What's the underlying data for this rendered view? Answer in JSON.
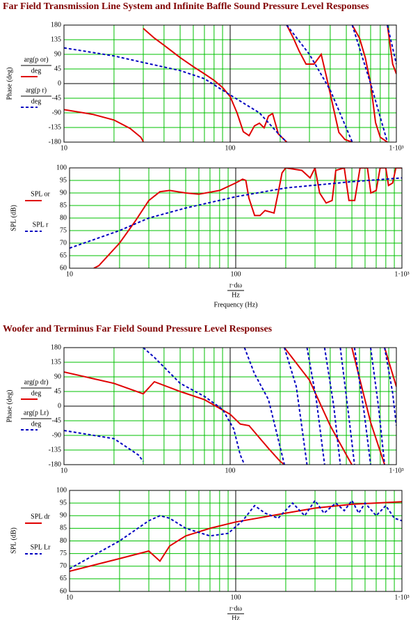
{
  "chart_data": [
    {
      "type": "line",
      "title": "Far Field Transmission Line System and Infinite Baffle Sound Pressure Level Responses",
      "ylabel": "Phase (deg)",
      "legend_denominator": "deg",
      "xlog": true,
      "xlim": [
        10,
        1000
      ],
      "xticks": [
        10,
        100,
        {
          "value": 1000,
          "label": "1·10³"
        }
      ],
      "ylim": [
        -180,
        180
      ],
      "yticks": [
        -180,
        -135,
        -90,
        -45,
        0,
        45,
        90,
        135,
        180
      ],
      "grid": true,
      "series": [
        {
          "name": "arg(p or)",
          "color": "#e00000",
          "dash": false,
          "x": [
            10,
            15,
            20,
            25,
            29,
            30,
            30,
            30,
            35,
            40,
            50,
            60,
            70,
            80,
            90,
            100,
            110,
            120,
            130,
            140,
            150,
            160,
            170,
            180,
            195,
            219,
            219,
            219,
            240,
            260,
            286,
            320,
            353,
            380,
            420,
            451,
            490,
            543,
            543,
            543,
            600,
            650,
            700,
            750,
            800,
            883,
            883,
            883,
            950,
            1000
          ],
          "values": [
            -80,
            -95,
            -112,
            -138,
            -165,
            -178,
            null,
            170,
            140,
            118,
            80,
            52,
            30,
            10,
            -12,
            -40,
            -90,
            -148,
            -160,
            -130,
            -122,
            -136,
            -100,
            -92,
            -155,
            -180,
            null,
            180,
            140,
            100,
            60,
            60,
            90,
            20,
            -80,
            -150,
            -172,
            -180,
            null,
            180,
            140,
            80,
            0,
            -120,
            -165,
            -180,
            null,
            180,
            60,
            30
          ]
        },
        {
          "name": "arg(p r)",
          "color": "#0000c0",
          "dash": true,
          "x": [
            10,
            20,
            30,
            50,
            70,
            100,
            150,
            200,
            219,
            219,
            219,
            300,
            400,
            543,
            543,
            543,
            700,
            883,
            883,
            883,
            1000
          ],
          "values": [
            110,
            85,
            65,
            40,
            15,
            -35,
            -90,
            -160,
            -180,
            null,
            180,
            90,
            -20,
            -180,
            null,
            180,
            0,
            -180,
            null,
            180,
            60
          ]
        }
      ]
    },
    {
      "type": "line",
      "ylabel": "SPL (dB)",
      "xlabel_numerator": "r·dω",
      "xlabel_denominator": "Hz",
      "xlabel": "Frequency (Hz)",
      "xlog": true,
      "xlim": [
        10,
        1000
      ],
      "xticks": [
        10,
        100,
        {
          "value": 1000,
          "label": "1·10³"
        }
      ],
      "ylim": [
        60,
        100
      ],
      "yticks": [
        60,
        65,
        70,
        75,
        80,
        85,
        90,
        95,
        100
      ],
      "grid": true,
      "series": [
        {
          "name": "SPL or",
          "color": "#e00000",
          "dash": false,
          "x": [
            14,
            15,
            20,
            25,
            30,
            35,
            40,
            50,
            60,
            80,
            100,
            110,
            115,
            120,
            130,
            140,
            150,
            170,
            180,
            190,
            200,
            250,
            280,
            300,
            320,
            350,
            380,
            400,
            450,
            480,
            520,
            560,
            620,
            650,
            700,
            740,
            800,
            830,
            880,
            920,
            1000
          ],
          "values": [
            60,
            61,
            70,
            79,
            87,
            90.5,
            91,
            90,
            89.5,
            91,
            94,
            95.5,
            95,
            88,
            81,
            81,
            83,
            82,
            90,
            98,
            100,
            99,
            96,
            100,
            90,
            86,
            87,
            99,
            100,
            87,
            87,
            100,
            100,
            90,
            91,
            100,
            100,
            93,
            94,
            100,
            100
          ]
        },
        {
          "name": "SPL r",
          "color": "#0000c0",
          "dash": true,
          "x": [
            10,
            20,
            30,
            50,
            100,
            200,
            500,
            1000
          ],
          "values": [
            68,
            75,
            80,
            84,
            88.5,
            92,
            94.5,
            96
          ]
        }
      ]
    },
    {
      "type": "line",
      "title": "Woofer and Terminus Far Field Sound Pressure Level Responses",
      "ylabel": "Phase (deg)",
      "legend_denominator": "deg",
      "xlog": true,
      "xlim": [
        10,
        1000
      ],
      "xticks": [
        10,
        100,
        {
          "value": 1000,
          "label": "1·10³"
        }
      ],
      "ylim": [
        -180,
        180
      ],
      "yticks": [
        -180,
        -135,
        -90,
        -45,
        0,
        45,
        90,
        135,
        180
      ],
      "grid": true,
      "series": [
        {
          "name": "arg(p dr)",
          "color": "#e00000",
          "dash": false,
          "x": [
            10,
            20,
            30,
            35,
            50,
            70,
            100,
            115,
            130,
            170,
            200,
            212,
            212,
            212,
            300,
            400,
            500,
            540,
            540,
            540,
            700,
            850,
            850,
            850,
            1000
          ],
          "values": [
            105,
            70,
            38,
            75,
            45,
            20,
            -25,
            -55,
            -60,
            -130,
            -170,
            -180,
            null,
            180,
            80,
            -60,
            -150,
            -180,
            null,
            180,
            -50,
            -180,
            null,
            180,
            60
          ]
        },
        {
          "name": "arg(p Lr)",
          "color": "#0000c0",
          "dash": true,
          "x": [
            10,
            20,
            28,
            30,
            30,
            30,
            35,
            50,
            70,
            90,
            105,
            115,
            122,
            122,
            122,
            140,
            170,
            190,
            212,
            212,
            212,
            250,
            290,
            290,
            290,
            330,
            370,
            370,
            370,
            420,
            460,
            460,
            460,
            520,
            560,
            560,
            560,
            640,
            700,
            700,
            700,
            780,
            850,
            850,
            850,
            950,
            1000
          ],
          "values": [
            -75,
            -100,
            -150,
            -170,
            null,
            180,
            150,
            70,
            30,
            -10,
            -70,
            -150,
            -180,
            null,
            180,
            100,
            20,
            -80,
            -180,
            null,
            180,
            60,
            -180,
            null,
            180,
            20,
            -180,
            null,
            180,
            0,
            -180,
            null,
            180,
            -40,
            -180,
            null,
            180,
            -20,
            -180,
            null,
            180,
            0,
            -180,
            null,
            180,
            40,
            -60
          ]
        }
      ]
    },
    {
      "type": "line",
      "ylabel": "SPL (dB)",
      "xlabel_numerator": "r·dω",
      "xlabel_denominator": "Hz",
      "xlog": true,
      "xlim": [
        10,
        1000
      ],
      "xticks": [
        10,
        100,
        {
          "value": 1000,
          "label": "1·10³"
        }
      ],
      "ylim": [
        60,
        100
      ],
      "yticks": [
        60,
        65,
        70,
        75,
        80,
        85,
        90,
        95,
        100
      ],
      "grid": true,
      "series": [
        {
          "name": "SPL dr",
          "color": "#e00000",
          "dash": false,
          "x": [
            10,
            20,
            30,
            35,
            40,
            50,
            70,
            100,
            200,
            300,
            500,
            1000
          ],
          "values": [
            68,
            73,
            76,
            72,
            78,
            82,
            85,
            87.5,
            91,
            93,
            94.5,
            95.5
          ]
        },
        {
          "name": "SPL Lr",
          "color": "#0000c0",
          "dash": true,
          "x": [
            10,
            20,
            30,
            35,
            40,
            50,
            70,
            90,
            110,
            130,
            150,
            180,
            220,
            260,
            300,
            340,
            400,
            450,
            500,
            550,
            600,
            700,
            800,
            900,
            1000
          ],
          "values": [
            69,
            80,
            88,
            90,
            89,
            85,
            82,
            83,
            88,
            94,
            91,
            89,
            95,
            90,
            96,
            91,
            95,
            92,
            96,
            91,
            95,
            90,
            94,
            89,
            88
          ]
        }
      ]
    }
  ]
}
